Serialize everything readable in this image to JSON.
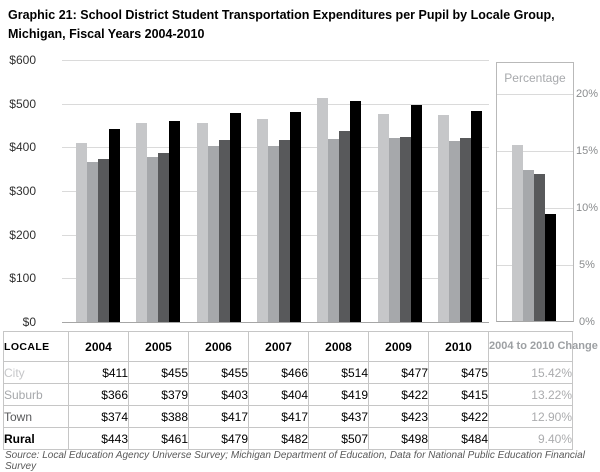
{
  "header": {
    "title": "Graphic 21: School District Student Transportation Expenditures per Pupil by Locale Group, Michigan, Fiscal Years 2004-2010"
  },
  "chart_data": {
    "type": "bar",
    "title": "School District Student Transportation Expenditures per Pupil by Locale Group, Michigan, Fiscal Years 2004-2010",
    "categories": [
      "2004",
      "2005",
      "2006",
      "2007",
      "2008",
      "2009",
      "2010"
    ],
    "series": [
      {
        "name": "City",
        "color": "#c6c7c9",
        "values": [
          411,
          455,
          455,
          466,
          514,
          477,
          475
        ],
        "change_2004_to_2010_pct": 15.42
      },
      {
        "name": "Suburb",
        "color": "#a6a8ab",
        "values": [
          366,
          379,
          403,
          404,
          419,
          422,
          415
        ],
        "change_2004_to_2010_pct": 13.22
      },
      {
        "name": "Town",
        "color": "#58595b",
        "values": [
          374,
          388,
          417,
          417,
          437,
          423,
          422
        ],
        "change_2004_to_2010_pct": 12.9
      },
      {
        "name": "Rural",
        "color": "#000000",
        "values": [
          443,
          461,
          479,
          482,
          507,
          498,
          484
        ],
        "change_2004_to_2010_pct": 9.4
      }
    ],
    "left_axis": {
      "ticks": [
        "$600",
        "$500",
        "$400",
        "$300",
        "$200",
        "$100",
        "$0"
      ],
      "ylim": [
        0,
        600
      ],
      "grid": true
    },
    "right_panel": {
      "label": "Percentage",
      "ticks": [
        "20%",
        "15%",
        "10%",
        "5%",
        "0%"
      ],
      "ylim": [
        0,
        20
      ],
      "grid": true
    },
    "legend_position": "table row labels act as legend (text colored to match bars)"
  },
  "table": {
    "columns": [
      "LOCALE",
      "2004",
      "2005",
      "2006",
      "2007",
      "2008",
      "2009",
      "2010",
      "2004 to 2010 Change"
    ],
    "rows": [
      {
        "label": "City",
        "values": [
          "$411",
          "$455",
          "$455",
          "$466",
          "$514",
          "$477",
          "$475"
        ],
        "change": "15.42%"
      },
      {
        "label": "Suburb",
        "values": [
          "$366",
          "$379",
          "$403",
          "$404",
          "$419",
          "$422",
          "$415"
        ],
        "change": "13.22%"
      },
      {
        "label": "Town",
        "values": [
          "$374",
          "$388",
          "$417",
          "$417",
          "$437",
          "$423",
          "$422"
        ],
        "change": "12.90%"
      },
      {
        "label": "Rural",
        "values": [
          "$443",
          "$461",
          "$479",
          "$482",
          "$507",
          "$498",
          "$484"
        ],
        "change": "9.40%"
      }
    ]
  },
  "footer": {
    "source": "Source: Local Education Agency Universe Survey; Michigan Department of Education, Data for National Public Education Financial Survey"
  },
  "colors": {
    "gridline": "#dadada",
    "baseline": "#a6a6a6",
    "panel_border": "#b9b9b9",
    "table_border": "#c6c6c6",
    "muted_text": "#a7a9ac"
  }
}
